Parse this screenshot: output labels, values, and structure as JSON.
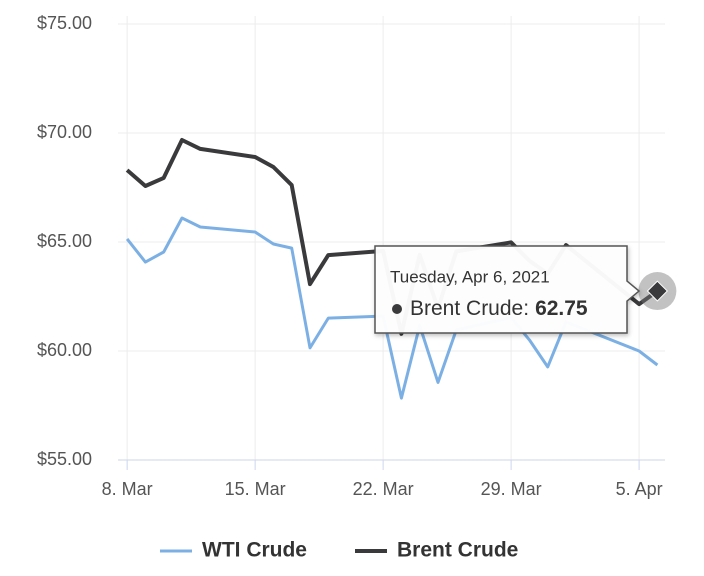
{
  "chart_data": {
    "type": "line",
    "x": [
      "2021-03-08",
      "2021-03-09",
      "2021-03-10",
      "2021-03-11",
      "2021-03-12",
      "2021-03-15",
      "2021-03-16",
      "2021-03-17",
      "2021-03-18",
      "2021-03-19",
      "2021-03-22",
      "2021-03-23",
      "2021-03-24",
      "2021-03-25",
      "2021-03-26",
      "2021-03-29",
      "2021-03-30",
      "2021-03-31",
      "2021-04-01",
      "2021-04-05",
      "2021-04-06"
    ],
    "series": [
      {
        "name": "WTI Crude",
        "color": "#7cb0e4",
        "values": [
          65.14,
          64.08,
          64.54,
          66.1,
          65.69,
          65.46,
          64.91,
          64.72,
          60.14,
          61.51,
          61.6,
          57.84,
          61.17,
          58.56,
          60.97,
          61.53,
          60.51,
          59.27,
          61.33,
          60.0,
          59.36
        ]
      },
      {
        "name": "Brent Crude",
        "color": "#3a3a3c",
        "values": [
          68.3,
          67.57,
          67.94,
          69.68,
          69.27,
          68.9,
          68.44,
          67.61,
          63.07,
          64.4,
          64.59,
          60.79,
          64.41,
          61.95,
          64.57,
          64.98,
          64.14,
          63.54,
          64.86,
          62.15,
          62.75
        ]
      }
    ],
    "xlim": [
      "2021-03-07T12:00:00Z",
      "2021-04-06T10:00:00Z"
    ],
    "xticks": [
      {
        "value": "2021-03-08",
        "label": "8. Mar"
      },
      {
        "value": "2021-03-15",
        "label": "15. Mar"
      },
      {
        "value": "2021-03-22",
        "label": "22. Mar"
      },
      {
        "value": "2021-03-29",
        "label": "29. Mar"
      },
      {
        "value": "2021-04-05",
        "label": "5. Apr"
      }
    ],
    "ylim": [
      55,
      75
    ],
    "yticks": [
      {
        "value": 55,
        "label": "$55.00"
      },
      {
        "value": 60,
        "label": "$60.00"
      },
      {
        "value": 65,
        "label": "$65.00"
      },
      {
        "value": 70,
        "label": "$70.00"
      },
      {
        "value": 75,
        "label": "$75.00"
      }
    ],
    "grid": true,
    "tooltip": {
      "title": "Tuesday, Apr 6, 2021",
      "label": "Brent Crude:",
      "value": 62.75,
      "series": 1,
      "point": 20
    }
  }
}
